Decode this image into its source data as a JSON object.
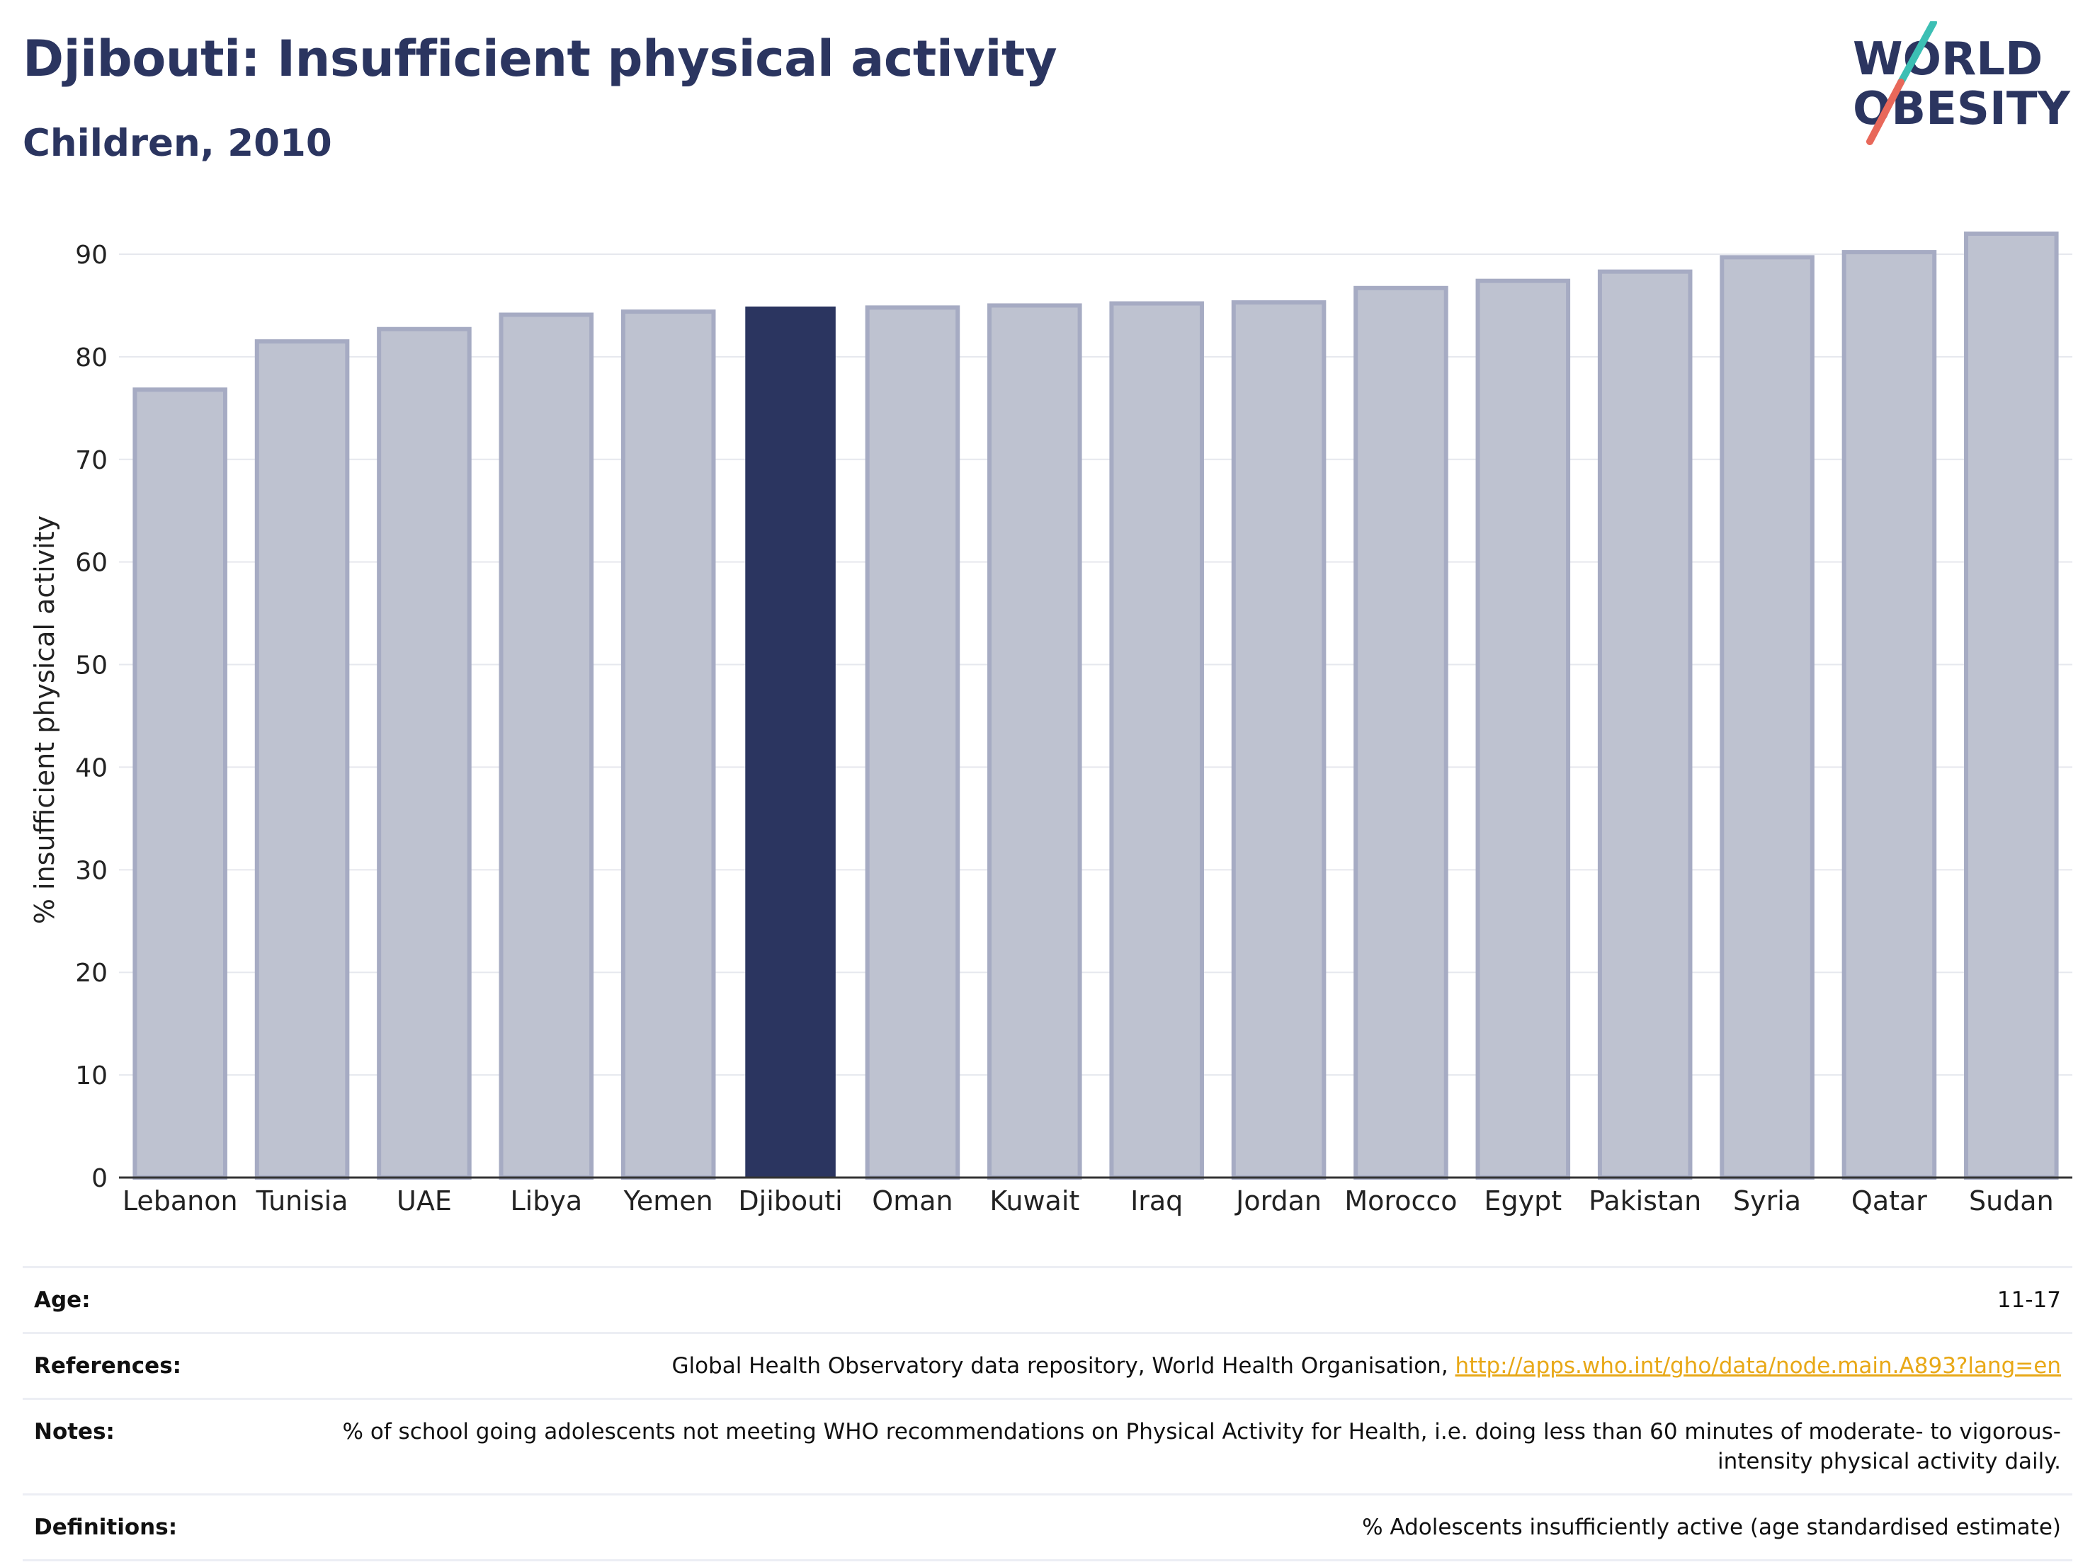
{
  "header": {
    "title": "Djibouti: Insufficient physical activity",
    "subtitle": "Children, 2010"
  },
  "logo": {
    "line1": "WORLD",
    "line2": "OBESITY"
  },
  "colors": {
    "highlight": "#2b3560",
    "bar_fill": "#bec2d0",
    "bar_stroke": "#a6abc3",
    "title": "#2b3560",
    "link": "#e8a817"
  },
  "chart_data": {
    "type": "bar",
    "title": "Djibouti: Insufficient physical activity",
    "subtitle": "Children, 2010",
    "xlabel": "",
    "ylabel": "% insufficient physical activity",
    "ylim": [
      0,
      92
    ],
    "yticks": [
      0,
      10,
      20,
      30,
      40,
      50,
      60,
      70,
      80,
      90
    ],
    "grid": true,
    "highlight": "Djibouti",
    "categories": [
      "Lebanon",
      "Tunisia",
      "UAE",
      "Libya",
      "Yemen",
      "Djibouti",
      "Oman",
      "Kuwait",
      "Iraq",
      "Jordan",
      "Morocco",
      "Egypt",
      "Pakistan",
      "Syria",
      "Qatar",
      "Sudan"
    ],
    "values": [
      76.8,
      81.5,
      82.7,
      84.1,
      84.4,
      84.9,
      84.8,
      85.0,
      85.2,
      85.3,
      86.7,
      87.4,
      88.3,
      89.7,
      90.2,
      92.0
    ]
  },
  "meta": [
    {
      "key": "Age:",
      "value": "11-17"
    },
    {
      "key": "References:",
      "value": "Global Health Observatory data repository, World Health Organisation, ",
      "link": "http://apps.who.int/gho/data/node.main.A893?lang=en"
    },
    {
      "key": "Notes:",
      "value": "% of school going adolescents not meeting WHO recommendations on Physical Activity for Health, i.e. doing less than 60 minutes of moderate- to vigorous-intensity physical activity daily."
    },
    {
      "key": "Definitions:",
      "value": "% Adolescents insufficiently active (age standardised estimate)"
    }
  ]
}
